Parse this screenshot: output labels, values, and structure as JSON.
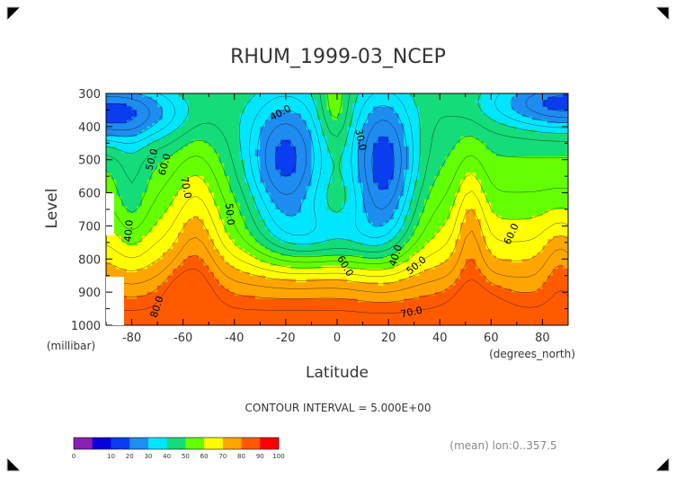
{
  "chart_data": {
    "type": "heatmap",
    "title": "RHUM_1999-03_NCEP",
    "xlabel": "Latitude",
    "x_unit": "(degrees_north)",
    "ylabel": "Level",
    "y_unit": "(millibar)",
    "xlim": [
      -90,
      90
    ],
    "ylim": [
      1000,
      300
    ],
    "x_ticks": [
      "-80",
      "-60",
      "-40",
      "-20",
      "0",
      "20",
      "40",
      "60",
      "80"
    ],
    "y_ticks": [
      "300",
      "400",
      "500",
      "600",
      "700",
      "800",
      "900",
      "1000"
    ],
    "contour_interval_text": "CONTOUR INTERVAL = 5.000E+00",
    "footnote": "(mean) lon:0..357.5",
    "contour_labels": [
      {
        "text": "40.0",
        "lat": -22,
        "p": 360,
        "angle": -28
      },
      {
        "text": "30.0",
        "lat": 9,
        "p": 440,
        "angle": 78
      },
      {
        "text": "50.0",
        "lat": -72,
        "p": 500,
        "angle": -75
      },
      {
        "text": "60.0",
        "lat": -67,
        "p": 515,
        "angle": -75
      },
      {
        "text": "70.0",
        "lat": -59,
        "p": 585,
        "angle": 80
      },
      {
        "text": "50.0",
        "lat": -42,
        "p": 665,
        "angle": 85
      },
      {
        "text": "40.0",
        "lat": -81,
        "p": 715,
        "angle": -85
      },
      {
        "text": "60.0",
        "lat": 3,
        "p": 822,
        "angle": 60
      },
      {
        "text": "40.0",
        "lat": 23,
        "p": 790,
        "angle": -72
      },
      {
        "text": "50.0",
        "lat": 31,
        "p": 820,
        "angle": -40
      },
      {
        "text": "60.0",
        "lat": 68,
        "p": 725,
        "angle": -65
      },
      {
        "text": "70.0",
        "lat": 29,
        "p": 962,
        "angle": -12
      },
      {
        "text": "80.0",
        "lat": -70,
        "p": 945,
        "angle": -72
      }
    ],
    "colorbar": {
      "ticks": [
        "0",
        "10",
        "20",
        "30",
        "40",
        "50",
        "60",
        "70",
        "80",
        "90",
        "100"
      ],
      "colors": [
        "#8a1fb4",
        "#0a00dc",
        "#0a3cf0",
        "#1e8cf0",
        "#00e6ff",
        "#14dc78",
        "#64ff00",
        "#ffff00",
        "#ffa500",
        "#ff5a00",
        "#ff0000"
      ]
    }
  }
}
